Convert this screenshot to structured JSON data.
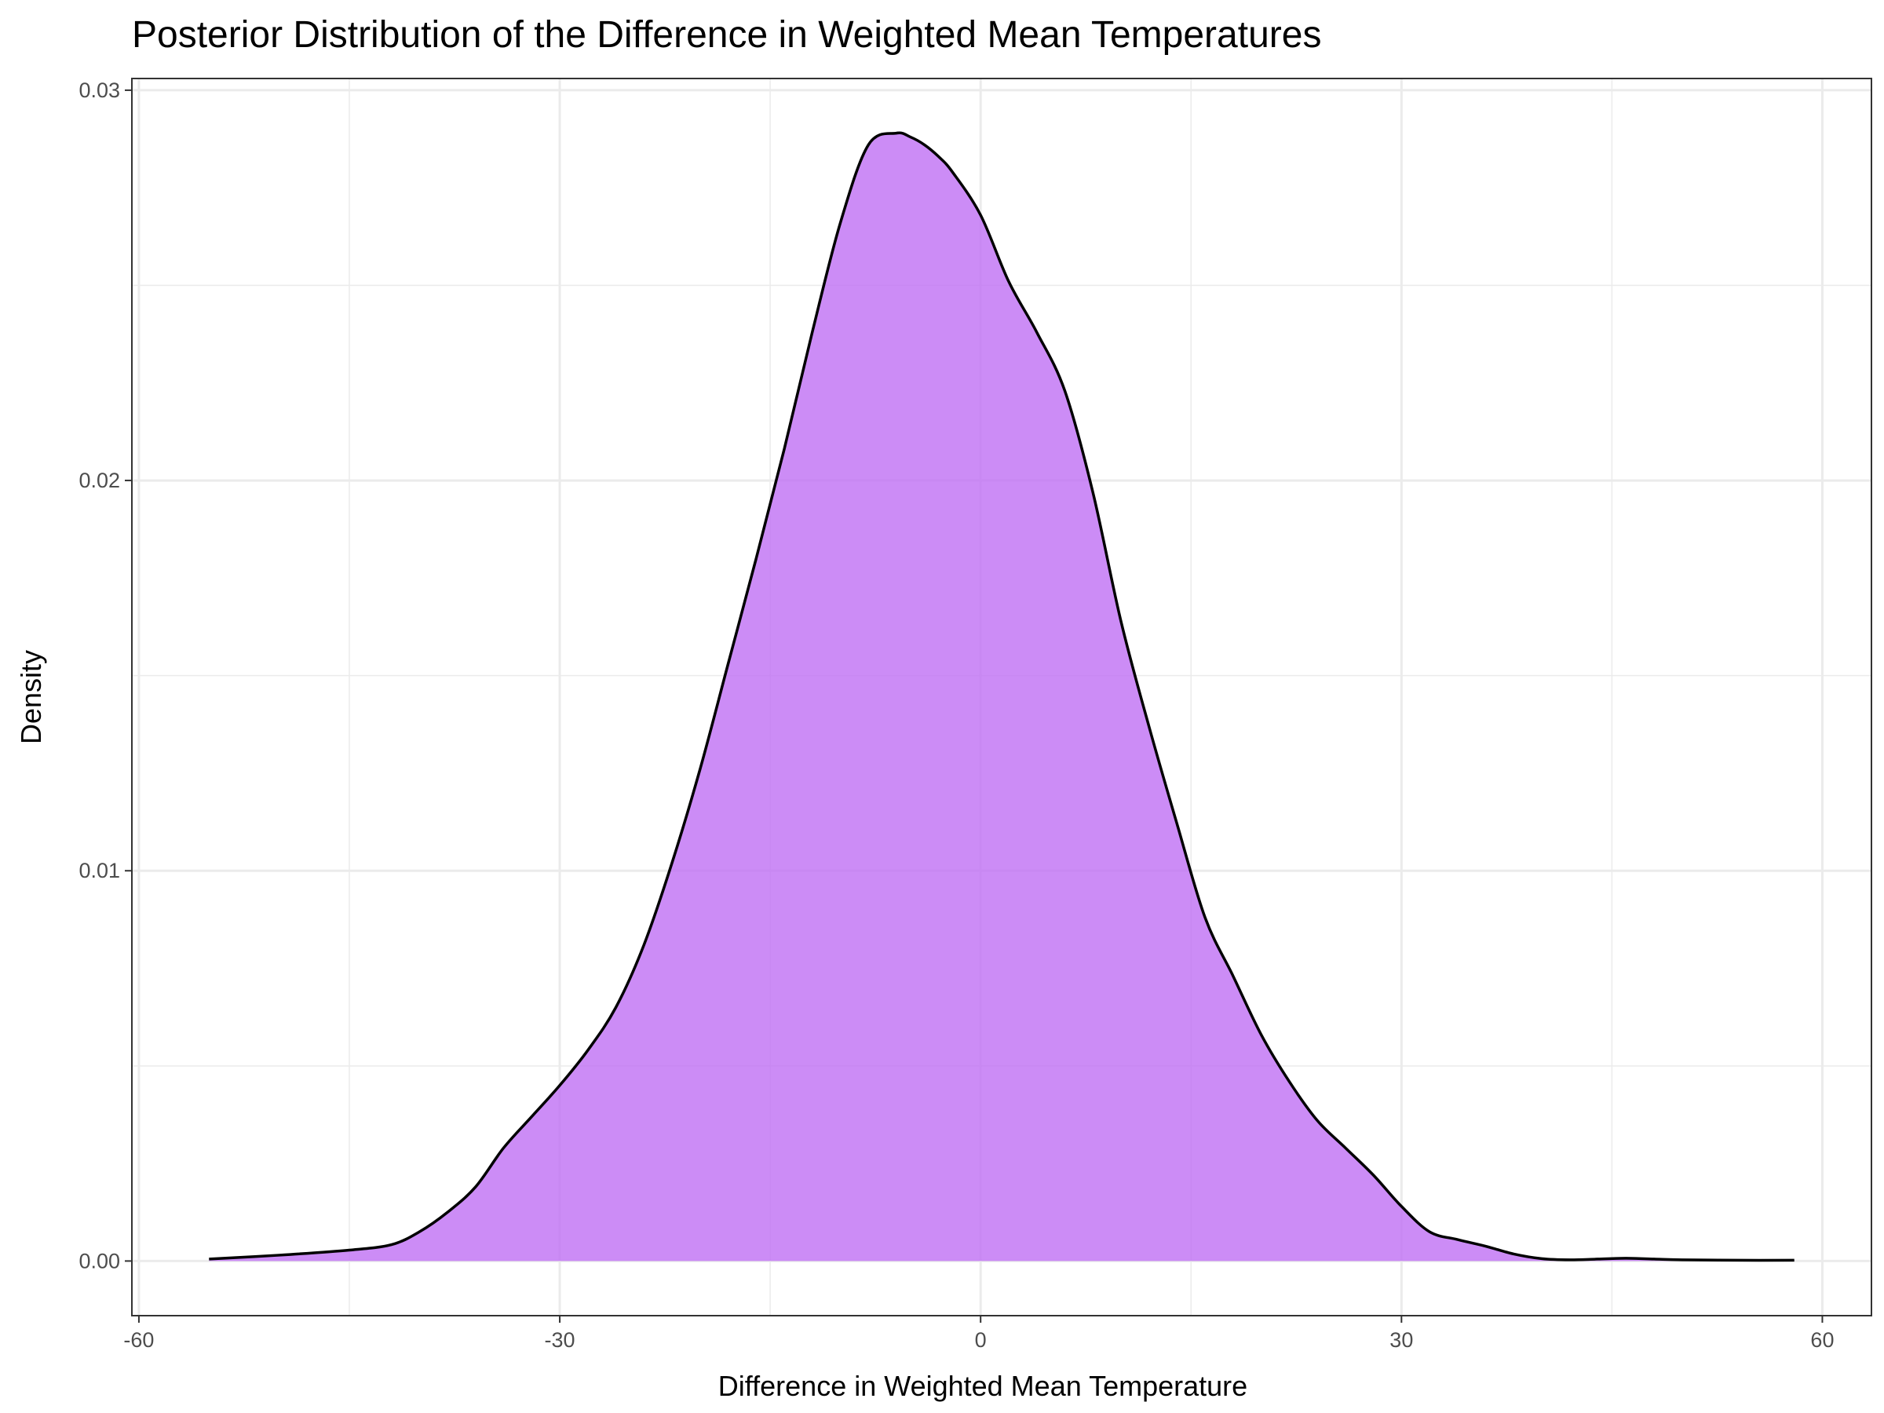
{
  "chart_data": {
    "type": "area",
    "title": "Posterior Distribution of the Difference in Weighted Mean Temperatures",
    "xlabel": "Difference in Weighted Mean Temperature",
    "ylabel": "Density",
    "xlim": [
      -60.5,
      63.5
    ],
    "ylim": [
      -0.0014,
      0.0303
    ],
    "x_ticks": [
      -60,
      -30,
      0,
      30,
      60
    ],
    "x_tick_labels": [
      "-60",
      "-30",
      "0",
      "30",
      "60"
    ],
    "y_ticks": [
      0.0,
      0.01,
      0.02,
      0.03
    ],
    "y_tick_labels": [
      "0.00",
      "0.01",
      "0.02",
      "0.03"
    ],
    "grid": true,
    "colors": {
      "fill": "#bf6ff4",
      "line": "#000000",
      "grid": "#ebebeb",
      "panel_border": "#333333"
    },
    "series": [
      {
        "x": [
          -55.0,
          -50.0,
          -45.0,
          -42.0,
          -40.0,
          -38.0,
          -36.0,
          -34.0,
          -32.0,
          -30.0,
          -28.0,
          -26.0,
          -24.0,
          -22.0,
          -20.0,
          -18.0,
          -16.0,
          -14.0,
          -12.0,
          -10.0,
          -8.0,
          -6.0,
          -5.0,
          -4.0,
          -3.0,
          -2.0,
          0.0,
          2.0,
          4.0,
          6.0,
          8.0,
          10.0,
          12.0,
          14.0,
          16.0,
          18.0,
          20.0,
          22.0,
          24.0,
          26.0,
          28.0,
          30.0,
          32.0,
          34.0,
          36.0,
          38.0,
          40.0,
          42.0,
          44.0,
          46.0,
          48.0,
          50.0,
          54.0,
          58.0
        ],
        "y": [
          5e-05,
          0.00015,
          0.00028,
          0.00042,
          0.00075,
          0.00125,
          0.0019,
          0.0029,
          0.0037,
          0.0045,
          0.0054,
          0.0065,
          0.0081,
          0.0102,
          0.0126,
          0.0153,
          0.018,
          0.0208,
          0.0238,
          0.0266,
          0.0286,
          0.0289,
          0.0288,
          0.0286,
          0.0283,
          0.0279,
          0.0268,
          0.0251,
          0.0238,
          0.0223,
          0.0197,
          0.0164,
          0.0137,
          0.0112,
          0.0088,
          0.0073,
          0.0058,
          0.0046,
          0.0036,
          0.0029,
          0.0022,
          0.0014,
          0.00075,
          0.00055,
          0.00038,
          0.00018,
          6e-05,
          3e-05,
          5e-05,
          7e-05,
          5e-05,
          3e-05,
          2e-05,
          2e-05
        ]
      }
    ]
  }
}
